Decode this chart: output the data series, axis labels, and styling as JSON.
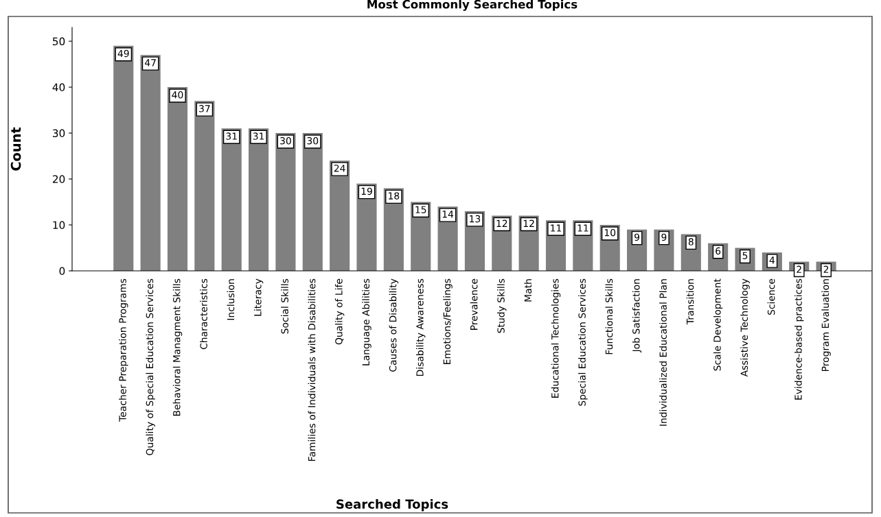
{
  "chart_data": {
    "type": "bar",
    "title": "Most Commonly Searched Topics",
    "xlabel": "Searched Topics",
    "ylabel": "Count",
    "categories": [
      "Teacher Preparation Programs",
      "Quality of Special Education Services",
      "Behavioral Managment Skills",
      "Characteristics",
      "Inclusion",
      "Literacy",
      "Social Skills",
      "Families of Individuals with Disabilities",
      "Quality of Life",
      "Language Abilities",
      "Causes of Disability",
      "Disability Awareness",
      "Emotions/Feelings",
      "Prevalence",
      "Study Skills",
      "Math",
      "Educational Technologies",
      "Special Education Services",
      "Functional Skills",
      "Job Satisfaction",
      "Individualized Educational Plan",
      "Transition",
      "Scale Development",
      "Assistive Technology",
      "Science",
      "Evidence-based practices",
      "Program Evaluation"
    ],
    "values": [
      49,
      47,
      40,
      37,
      31,
      31,
      30,
      30,
      24,
      19,
      18,
      15,
      14,
      13,
      12,
      12,
      11,
      11,
      10,
      9,
      9,
      8,
      6,
      5,
      4,
      2,
      2
    ],
    "color": "#808080",
    "ylim": [
      0,
      53
    ],
    "yticks": [
      0,
      10,
      20,
      30,
      40,
      50
    ],
    "grid": false,
    "data_labels": true
  }
}
